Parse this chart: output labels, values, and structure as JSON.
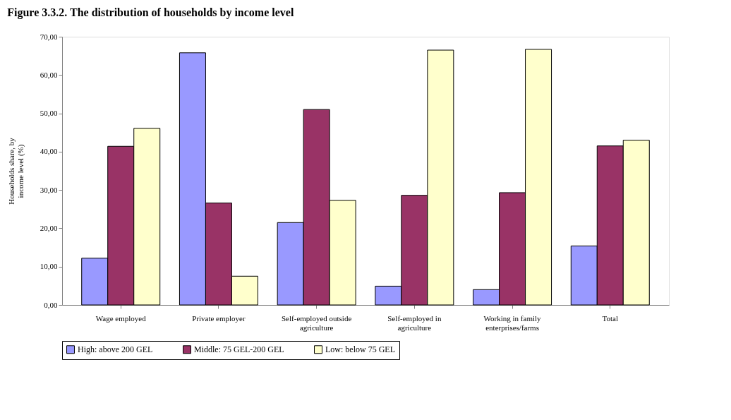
{
  "chart_data": {
    "type": "bar",
    "title": "Figure 3.3.2. The distribution of households by income level",
    "ylabel": "Households share, by income level (%)",
    "categories": [
      "Wage employed",
      "Private employer",
      "Self-employed outside agriculture",
      "Self-employed in agriculture",
      "Working in family enterprises/farms",
      "Total"
    ],
    "series": [
      {
        "name": "High: above 200 GEL",
        "color": "#9999ff",
        "values": [
          12.2,
          65.8,
          21.5,
          4.9,
          4.0,
          15.4
        ]
      },
      {
        "name": "Middle: 75 GEL-200 GEL",
        "color": "#993366",
        "values": [
          41.4,
          26.6,
          51.0,
          28.6,
          29.3,
          41.5
        ]
      },
      {
        "name": "Low: below 75 GEL",
        "color": "#ffffcc",
        "values": [
          46.1,
          7.5,
          27.3,
          66.5,
          66.7,
          43.0
        ]
      }
    ],
    "ylim": [
      0,
      70
    ],
    "yticks": [
      {
        "value": 0,
        "label": "0,00"
      },
      {
        "value": 10,
        "label": "10,00"
      },
      {
        "value": 20,
        "label": "20,00"
      },
      {
        "value": 30,
        "label": "30,00"
      },
      {
        "value": 40,
        "label": "40,00"
      },
      {
        "value": 50,
        "label": "50,00"
      },
      {
        "value": 60,
        "label": "60,00"
      },
      {
        "value": 70,
        "label": "70,00"
      }
    ],
    "grid": false,
    "legend": "bottom"
  }
}
